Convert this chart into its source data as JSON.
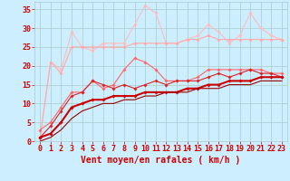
{
  "background_color": "#cceeff",
  "grid_color": "#aacccc",
  "xlabel": "Vent moyen/en rafales ( km/h )",
  "xlabel_color": "#cc0000",
  "xlabel_fontsize": 7,
  "tick_color": "#cc0000",
  "tick_fontsize": 6,
  "xlim": [
    -0.5,
    23.5
  ],
  "ylim": [
    0,
    37
  ],
  "yticks": [
    0,
    5,
    10,
    15,
    20,
    25,
    30,
    35
  ],
  "xticks": [
    0,
    1,
    2,
    3,
    4,
    5,
    6,
    7,
    8,
    9,
    10,
    11,
    12,
    13,
    14,
    15,
    16,
    17,
    18,
    19,
    20,
    21,
    22,
    23
  ],
  "series": [
    {
      "color": "#ffbbbb",
      "linewidth": 0.8,
      "marker": "D",
      "markersize": 1.8,
      "values": [
        1,
        21,
        19,
        29,
        25,
        24,
        26,
        26,
        26,
        31,
        36,
        34,
        26,
        26,
        27,
        28,
        31,
        29,
        26,
        28,
        34,
        30,
        28,
        27
      ]
    },
    {
      "color": "#ffaaaa",
      "linewidth": 0.8,
      "marker": "D",
      "markersize": 1.8,
      "values": [
        1,
        21,
        18,
        25,
        25,
        25,
        25,
        25,
        25,
        26,
        26,
        26,
        26,
        26,
        27,
        27,
        28,
        27,
        27,
        27,
        27,
        27,
        27,
        27
      ]
    },
    {
      "color": "#ff6666",
      "linewidth": 0.8,
      "marker": "D",
      "markersize": 1.8,
      "values": [
        3,
        5,
        9,
        13,
        13,
        16,
        14,
        15,
        19,
        22,
        21,
        19,
        16,
        16,
        16,
        17,
        19,
        19,
        19,
        19,
        19,
        19,
        18,
        18
      ]
    },
    {
      "color": "#dd2222",
      "linewidth": 0.8,
      "marker": "D",
      "markersize": 1.8,
      "values": [
        1,
        4,
        8,
        12,
        13,
        16,
        15,
        14,
        15,
        14,
        15,
        16,
        15,
        16,
        16,
        16,
        17,
        18,
        17,
        18,
        19,
        18,
        18,
        17
      ]
    },
    {
      "color": "#cc0000",
      "linewidth": 1.5,
      "marker": "D",
      "markersize": 1.8,
      "values": [
        1,
        2,
        5,
        9,
        10,
        11,
        11,
        12,
        12,
        12,
        13,
        13,
        13,
        13,
        14,
        14,
        15,
        15,
        16,
        16,
        16,
        17,
        17,
        17
      ]
    },
    {
      "color": "#990000",
      "linewidth": 0.8,
      "marker": null,
      "markersize": 0,
      "values": [
        0,
        1,
        3,
        6,
        8,
        9,
        10,
        10,
        11,
        11,
        12,
        12,
        13,
        13,
        13,
        14,
        14,
        14,
        15,
        15,
        15,
        16,
        16,
        16
      ]
    }
  ]
}
